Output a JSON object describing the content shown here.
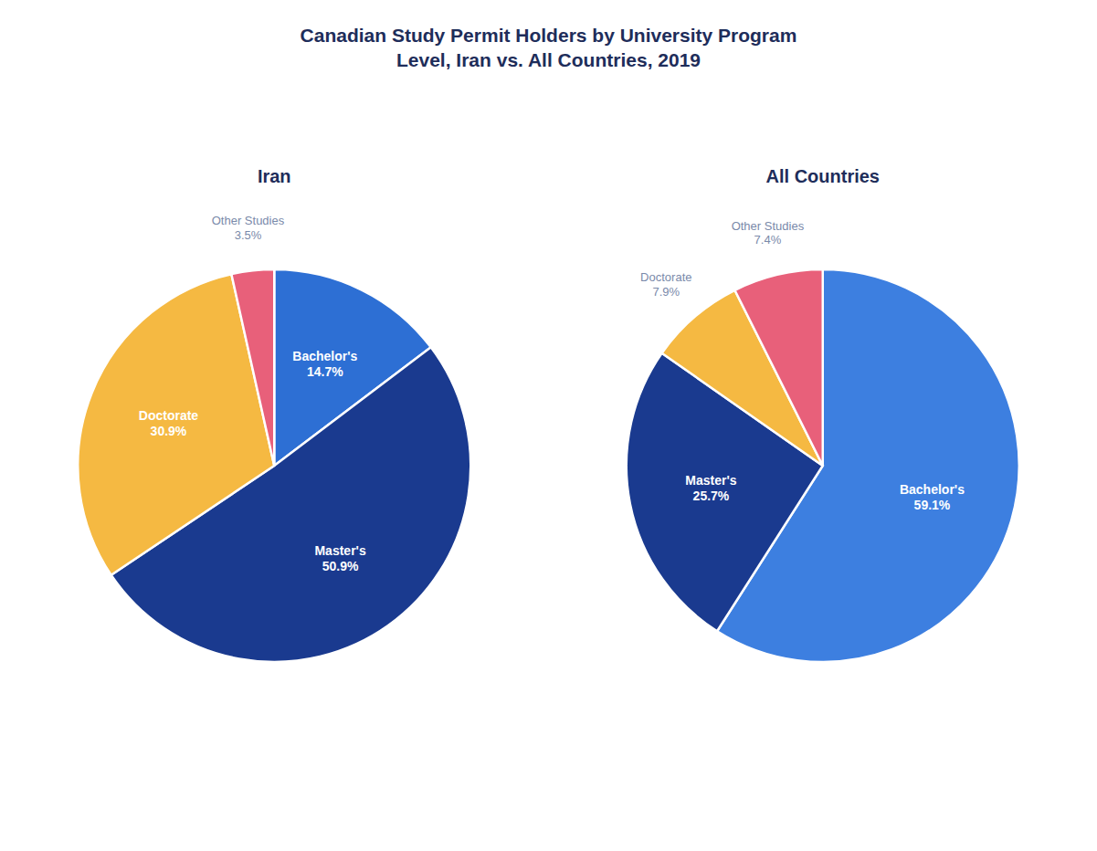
{
  "chart_data": [
    {
      "type": "pie",
      "title": "Canadian Study Permit Holders by University Program\nLevel, Iran vs. All Countries, 2019",
      "subtitle": "Iran",
      "categories": [
        "Bachelor's",
        "Master's",
        "Doctorate",
        "Other Studies"
      ],
      "values": [
        14.7,
        50.9,
        30.9,
        3.5
      ],
      "value_labels": [
        "14.7%",
        "50.9%",
        "30.9%",
        "3.5%"
      ],
      "colors": [
        "#2d6fd4",
        "#1a3a8f",
        "#f5b942",
        "#e8607a"
      ],
      "data_labels": true
    },
    {
      "type": "pie",
      "subtitle": "All Countries",
      "categories": [
        "Bachelor's",
        "Master's",
        "Doctorate",
        "Other Studies"
      ],
      "values": [
        59.1,
        25.7,
        7.9,
        7.4
      ],
      "value_labels": [
        "59.1%",
        "25.7%",
        "7.9%",
        "7.4%"
      ],
      "colors": [
        "#3d7fe0",
        "#1a3a8f",
        "#f5b942",
        "#e8607a"
      ],
      "data_labels": true
    }
  ]
}
